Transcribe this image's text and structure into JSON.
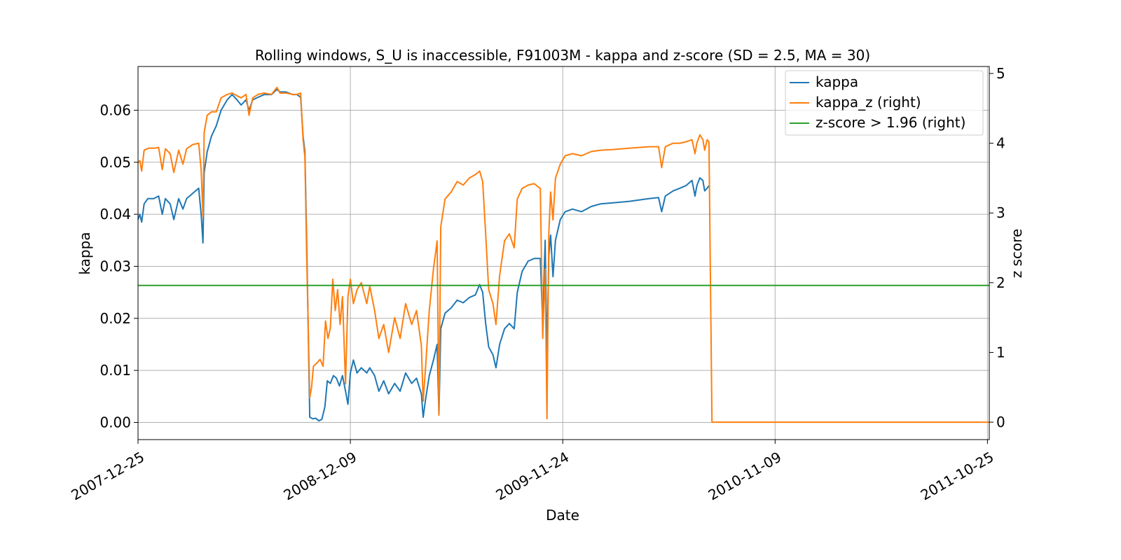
{
  "chart_data": {
    "type": "line",
    "title": "Rolling windows, S_U is inaccessible, F91003M - kappa and z-score (SD = 2.5, MA = 30)",
    "xlabel": "Date",
    "ylabel": "kappa",
    "ylabel_right": "z score",
    "x_ticks": [
      "2007-12-25",
      "2008-12-09",
      "2009-11-24",
      "2010-11-09",
      "2011-10-25"
    ],
    "xlim": [
      "2007-12-25",
      "2011-10-28"
    ],
    "y_ticks": [
      "0.00",
      "0.01",
      "0.02",
      "0.03",
      "0.04",
      "0.05",
      "0.06"
    ],
    "ylim": [
      -0.0033,
      0.0684
    ],
    "y_right_ticks": [
      "0",
      "1",
      "2",
      "3",
      "4",
      "5"
    ],
    "ylim_right": [
      -0.25,
      5.1
    ],
    "grid": true,
    "legend_position": "top-right",
    "series": [
      {
        "name": "kappa",
        "axis": "left",
        "color": "#1f77b4",
        "points": [
          [
            "2007-12-25",
            0.039
          ],
          [
            "2007-12-28",
            0.04
          ],
          [
            "2007-12-31",
            0.0385
          ],
          [
            "2008-01-04",
            0.042
          ],
          [
            "2008-01-10",
            0.043
          ],
          [
            "2008-01-20",
            0.043
          ],
          [
            "2008-01-28",
            0.0435
          ],
          [
            "2008-02-03",
            0.04
          ],
          [
            "2008-02-08",
            0.043
          ],
          [
            "2008-02-16",
            0.042
          ],
          [
            "2008-02-22",
            0.039
          ],
          [
            "2008-03-01",
            0.043
          ],
          [
            "2008-03-08",
            0.041
          ],
          [
            "2008-03-14",
            0.043
          ],
          [
            "2008-03-24",
            0.044
          ],
          [
            "2008-04-03",
            0.045
          ],
          [
            "2008-04-07",
            0.04
          ],
          [
            "2008-04-10",
            0.0345
          ],
          [
            "2008-04-12",
            0.048
          ],
          [
            "2008-04-17",
            0.052
          ],
          [
            "2008-04-24",
            0.055
          ],
          [
            "2008-05-02",
            0.057
          ],
          [
            "2008-05-10",
            0.06
          ],
          [
            "2008-05-20",
            0.062
          ],
          [
            "2008-05-28",
            0.063
          ],
          [
            "2008-06-05",
            0.062
          ],
          [
            "2008-06-12",
            0.061
          ],
          [
            "2008-06-20",
            0.062
          ],
          [
            "2008-06-25",
            0.06
          ],
          [
            "2008-07-01",
            0.062
          ],
          [
            "2008-07-10",
            0.0625
          ],
          [
            "2008-07-20",
            0.063
          ],
          [
            "2008-08-01",
            0.063
          ],
          [
            "2008-08-10",
            0.064
          ],
          [
            "2008-08-15",
            0.0635
          ],
          [
            "2008-08-25",
            0.0635
          ],
          [
            "2008-09-05",
            0.063
          ],
          [
            "2008-09-12",
            0.063
          ],
          [
            "2008-09-18",
            0.0625
          ],
          [
            "2008-09-22",
            0.055
          ],
          [
            "2008-09-25",
            0.052
          ],
          [
            "2008-09-28",
            0.035
          ],
          [
            "2008-10-01",
            0.015
          ],
          [
            "2008-10-03",
            0.001
          ],
          [
            "2008-10-08",
            0.0007
          ],
          [
            "2008-10-13",
            0.0008
          ],
          [
            "2008-10-18",
            0.0003
          ],
          [
            "2008-10-23",
            0.0006
          ],
          [
            "2008-10-28",
            0.003
          ],
          [
            "2008-11-01",
            0.008
          ],
          [
            "2008-11-06",
            0.0075
          ],
          [
            "2008-11-11",
            0.009
          ],
          [
            "2008-11-16",
            0.0085
          ],
          [
            "2008-11-21",
            0.007
          ],
          [
            "2008-11-26",
            0.009
          ],
          [
            "2008-12-01",
            0.006
          ],
          [
            "2008-12-05",
            0.0035
          ],
          [
            "2008-12-09",
            0.0095
          ],
          [
            "2008-12-14",
            0.012
          ],
          [
            "2008-12-20",
            0.0095
          ],
          [
            "2008-12-27",
            0.0105
          ],
          [
            "2009-01-05",
            0.0095
          ],
          [
            "2009-01-10",
            0.0105
          ],
          [
            "2009-01-18",
            0.009
          ],
          [
            "2009-01-25",
            0.006
          ],
          [
            "2009-02-02",
            0.008
          ],
          [
            "2009-02-10",
            0.0055
          ],
          [
            "2009-02-20",
            0.0075
          ],
          [
            "2009-03-01",
            0.006
          ],
          [
            "2009-03-10",
            0.0095
          ],
          [
            "2009-03-20",
            0.0075
          ],
          [
            "2009-03-28",
            0.0085
          ],
          [
            "2009-04-05",
            0.0055
          ],
          [
            "2009-04-08",
            0.001
          ],
          [
            "2009-04-12",
            0.0045
          ],
          [
            "2009-04-18",
            0.009
          ],
          [
            "2009-04-25",
            0.012
          ],
          [
            "2009-05-01",
            0.015
          ],
          [
            "2009-05-04",
            0.0015
          ],
          [
            "2009-05-07",
            0.018
          ],
          [
            "2009-05-14",
            0.021
          ],
          [
            "2009-05-24",
            0.022
          ],
          [
            "2009-06-03",
            0.0235
          ],
          [
            "2009-06-13",
            0.023
          ],
          [
            "2009-06-23",
            0.024
          ],
          [
            "2009-07-03",
            0.0245
          ],
          [
            "2009-07-10",
            0.0265
          ],
          [
            "2009-07-15",
            0.025
          ],
          [
            "2009-07-20",
            0.019
          ],
          [
            "2009-07-25",
            0.0145
          ],
          [
            "2009-08-01",
            0.013
          ],
          [
            "2009-08-06",
            0.0105
          ],
          [
            "2009-08-12",
            0.015
          ],
          [
            "2009-08-20",
            0.018
          ],
          [
            "2009-08-28",
            0.019
          ],
          [
            "2009-09-05",
            0.018
          ],
          [
            "2009-09-10",
            0.025
          ],
          [
            "2009-09-18",
            0.029
          ],
          [
            "2009-09-28",
            0.031
          ],
          [
            "2009-10-08",
            0.0315
          ],
          [
            "2009-10-18",
            0.0315
          ],
          [
            "2009-10-22",
            0.019
          ],
          [
            "2009-10-26",
            0.035
          ],
          [
            "2009-10-29",
            0.0125
          ],
          [
            "2009-11-01",
            0.032
          ],
          [
            "2009-11-04",
            0.036
          ],
          [
            "2009-11-08",
            0.028
          ],
          [
            "2009-11-12",
            0.035
          ],
          [
            "2009-11-20",
            0.039
          ],
          [
            "2009-11-28",
            0.0405
          ],
          [
            "2009-12-10",
            0.041
          ],
          [
            "2009-12-25",
            0.0405
          ],
          [
            "2010-01-10",
            0.0415
          ],
          [
            "2010-01-25",
            0.042
          ],
          [
            "2010-02-15",
            0.0422
          ],
          [
            "2010-03-15",
            0.0425
          ],
          [
            "2010-04-15",
            0.043
          ],
          [
            "2010-05-01",
            0.0432
          ],
          [
            "2010-05-06",
            0.0405
          ],
          [
            "2010-05-12",
            0.0435
          ],
          [
            "2010-05-25",
            0.0445
          ],
          [
            "2010-06-05",
            0.045
          ],
          [
            "2010-06-15",
            0.0455
          ],
          [
            "2010-06-25",
            0.0465
          ],
          [
            "2010-06-30",
            0.0435
          ],
          [
            "2010-07-03",
            0.0455
          ],
          [
            "2010-07-08",
            0.047
          ],
          [
            "2010-07-13",
            0.0465
          ],
          [
            "2010-07-16",
            0.0445
          ],
          [
            "2010-07-20",
            0.045
          ],
          [
            "2010-07-23",
            0.0455
          ]
        ]
      },
      {
        "name": "kappa_z (right)",
        "axis": "right",
        "color": "#ff7f0e",
        "points": [
          [
            "2007-12-25",
            3.72
          ],
          [
            "2007-12-28",
            3.75
          ],
          [
            "2007-12-31",
            3.6
          ],
          [
            "2008-01-04",
            3.9
          ],
          [
            "2008-01-12",
            3.93
          ],
          [
            "2008-01-22",
            3.93
          ],
          [
            "2008-01-28",
            3.94
          ],
          [
            "2008-02-03",
            3.62
          ],
          [
            "2008-02-08",
            3.92
          ],
          [
            "2008-02-16",
            3.85
          ],
          [
            "2008-02-22",
            3.58
          ],
          [
            "2008-03-01",
            3.9
          ],
          [
            "2008-03-08",
            3.7
          ],
          [
            "2008-03-14",
            3.92
          ],
          [
            "2008-03-24",
            3.98
          ],
          [
            "2008-04-03",
            4.0
          ],
          [
            "2008-04-07",
            3.62
          ],
          [
            "2008-04-10",
            2.95
          ],
          [
            "2008-04-12",
            4.15
          ],
          [
            "2008-04-17",
            4.4
          ],
          [
            "2008-04-24",
            4.45
          ],
          [
            "2008-05-02",
            4.45
          ],
          [
            "2008-05-10",
            4.65
          ],
          [
            "2008-05-20",
            4.7
          ],
          [
            "2008-05-28",
            4.72
          ],
          [
            "2008-06-05",
            4.68
          ],
          [
            "2008-06-12",
            4.65
          ],
          [
            "2008-06-20",
            4.7
          ],
          [
            "2008-06-25",
            4.4
          ],
          [
            "2008-07-01",
            4.65
          ],
          [
            "2008-07-10",
            4.7
          ],
          [
            "2008-07-20",
            4.72
          ],
          [
            "2008-08-01",
            4.7
          ],
          [
            "2008-08-10",
            4.8
          ],
          [
            "2008-08-15",
            4.72
          ],
          [
            "2008-08-25",
            4.72
          ],
          [
            "2008-09-05",
            4.7
          ],
          [
            "2008-09-12",
            4.7
          ],
          [
            "2008-09-18",
            4.72
          ],
          [
            "2008-09-22",
            4.05
          ],
          [
            "2008-09-25",
            3.8
          ],
          [
            "2008-09-28",
            2.4
          ],
          [
            "2008-10-01",
            1.2
          ],
          [
            "2008-10-03",
            0.35
          ],
          [
            "2008-10-06",
            0.5
          ],
          [
            "2008-10-09",
            0.8
          ],
          [
            "2008-10-15",
            0.85
          ],
          [
            "2008-10-20",
            0.9
          ],
          [
            "2008-10-25",
            0.8
          ],
          [
            "2008-10-29",
            1.45
          ],
          [
            "2008-11-02",
            1.2
          ],
          [
            "2008-11-06",
            1.35
          ],
          [
            "2008-11-10",
            2.05
          ],
          [
            "2008-11-14",
            1.6
          ],
          [
            "2008-11-18",
            1.9
          ],
          [
            "2008-11-22",
            1.4
          ],
          [
            "2008-11-26",
            1.8
          ],
          [
            "2008-12-01",
            0.55
          ],
          [
            "2008-12-05",
            1.8
          ],
          [
            "2008-12-09",
            2.05
          ],
          [
            "2008-12-14",
            1.7
          ],
          [
            "2008-12-20",
            1.9
          ],
          [
            "2008-12-27",
            2.0
          ],
          [
            "2009-01-05",
            1.7
          ],
          [
            "2009-01-10",
            1.95
          ],
          [
            "2009-01-18",
            1.6
          ],
          [
            "2009-01-25",
            1.2
          ],
          [
            "2009-02-02",
            1.4
          ],
          [
            "2009-02-10",
            1.0
          ],
          [
            "2009-02-20",
            1.5
          ],
          [
            "2009-03-01",
            1.2
          ],
          [
            "2009-03-10",
            1.7
          ],
          [
            "2009-03-20",
            1.4
          ],
          [
            "2009-03-28",
            1.6
          ],
          [
            "2009-04-05",
            1.1
          ],
          [
            "2009-04-08",
            0.3
          ],
          [
            "2009-04-12",
            0.8
          ],
          [
            "2009-04-18",
            1.6
          ],
          [
            "2009-04-25",
            2.2
          ],
          [
            "2009-05-01",
            2.6
          ],
          [
            "2009-05-04",
            0.1
          ],
          [
            "2009-05-07",
            2.8
          ],
          [
            "2009-05-14",
            3.2
          ],
          [
            "2009-05-24",
            3.3
          ],
          [
            "2009-06-03",
            3.45
          ],
          [
            "2009-06-13",
            3.4
          ],
          [
            "2009-06-23",
            3.5
          ],
          [
            "2009-07-03",
            3.55
          ],
          [
            "2009-07-10",
            3.6
          ],
          [
            "2009-07-15",
            3.45
          ],
          [
            "2009-07-20",
            2.7
          ],
          [
            "2009-07-25",
            1.9
          ],
          [
            "2009-08-01",
            1.7
          ],
          [
            "2009-08-06",
            1.4
          ],
          [
            "2009-08-12",
            2.1
          ],
          [
            "2009-08-20",
            2.6
          ],
          [
            "2009-08-28",
            2.7
          ],
          [
            "2009-09-05",
            2.5
          ],
          [
            "2009-09-10",
            3.2
          ],
          [
            "2009-09-18",
            3.35
          ],
          [
            "2009-09-28",
            3.4
          ],
          [
            "2009-10-08",
            3.42
          ],
          [
            "2009-10-18",
            3.35
          ],
          [
            "2009-10-22",
            1.2
          ],
          [
            "2009-10-26",
            2.2
          ],
          [
            "2009-10-29",
            0.05
          ],
          [
            "2009-11-01",
            2.7
          ],
          [
            "2009-11-04",
            3.3
          ],
          [
            "2009-11-08",
            2.9
          ],
          [
            "2009-11-12",
            3.5
          ],
          [
            "2009-11-20",
            3.7
          ],
          [
            "2009-11-28",
            3.82
          ],
          [
            "2009-12-10",
            3.85
          ],
          [
            "2009-12-25",
            3.82
          ],
          [
            "2010-01-10",
            3.88
          ],
          [
            "2010-01-25",
            3.9
          ],
          [
            "2010-02-15",
            3.91
          ],
          [
            "2010-03-15",
            3.93
          ],
          [
            "2010-04-15",
            3.95
          ],
          [
            "2010-05-01",
            3.95
          ],
          [
            "2010-05-06",
            3.65
          ],
          [
            "2010-05-12",
            3.95
          ],
          [
            "2010-05-25",
            4.0
          ],
          [
            "2010-06-05",
            4.0
          ],
          [
            "2010-06-15",
            4.02
          ],
          [
            "2010-06-25",
            4.05
          ],
          [
            "2010-06-30",
            3.85
          ],
          [
            "2010-07-03",
            4.0
          ],
          [
            "2010-07-08",
            4.12
          ],
          [
            "2010-07-13",
            4.05
          ],
          [
            "2010-07-16",
            3.9
          ],
          [
            "2010-07-20",
            4.05
          ],
          [
            "2010-07-23",
            4.02
          ],
          [
            "2010-07-28",
            0.0
          ],
          [
            "2011-10-28",
            0.0
          ]
        ]
      },
      {
        "name": "z-score > 1.96 (right)",
        "axis": "right",
        "color": "#2ca02c",
        "points": [
          [
            "2007-12-25",
            1.96
          ],
          [
            "2011-10-28",
            1.96
          ]
        ]
      }
    ]
  }
}
